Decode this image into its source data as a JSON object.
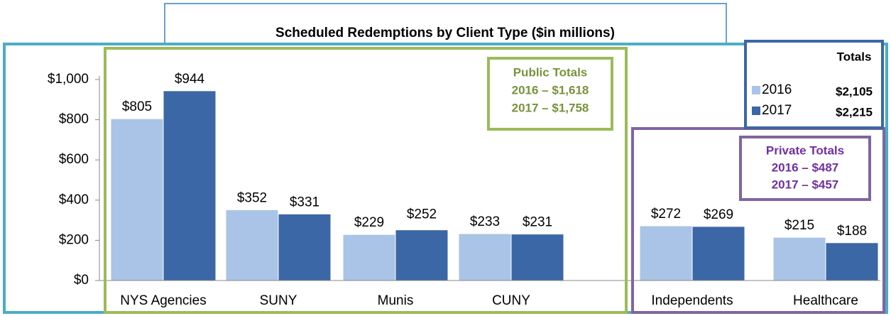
{
  "chart_data": {
    "type": "bar",
    "title": "Scheduled Redemptions by Client Type ($in millions)",
    "categories": [
      "NYS Agencies",
      "SUNY",
      "Munis",
      "CUNY",
      "Independents",
      "Healthcare"
    ],
    "series": [
      {
        "name": "2016",
        "color": "#a9c4e6",
        "values": [
          805,
          352,
          229,
          233,
          272,
          215
        ],
        "value_labels": [
          "$805",
          "$352",
          "$229",
          "$233",
          "$272",
          "$215"
        ]
      },
      {
        "name": "2017",
        "color": "#3b67a6",
        "values": [
          944,
          331,
          252,
          231,
          269,
          188
        ],
        "value_labels": [
          "$944",
          "$331",
          "$252",
          "$231",
          "$269",
          "$188"
        ]
      }
    ],
    "ylim": [
      0,
      1000
    ],
    "yticks": [
      {
        "value": 0,
        "label": "$0"
      },
      {
        "value": 200,
        "label": "$200"
      },
      {
        "value": 400,
        "label": "$400"
      },
      {
        "value": 600,
        "label": "$600"
      },
      {
        "value": 800,
        "label": "$800"
      },
      {
        "value": 1000,
        "label": "$1,000"
      }
    ],
    "legend_totals": {
      "title": "Totals",
      "values": [
        "$2,105",
        "$2,215"
      ]
    },
    "public_totals": {
      "title": "Public Totals",
      "lines": [
        "2016 – $1,618",
        "2017 – $1,758"
      ]
    },
    "private_totals": {
      "title": "Private Totals",
      "lines": [
        "2016 – $487",
        "2017 – $457"
      ]
    }
  }
}
